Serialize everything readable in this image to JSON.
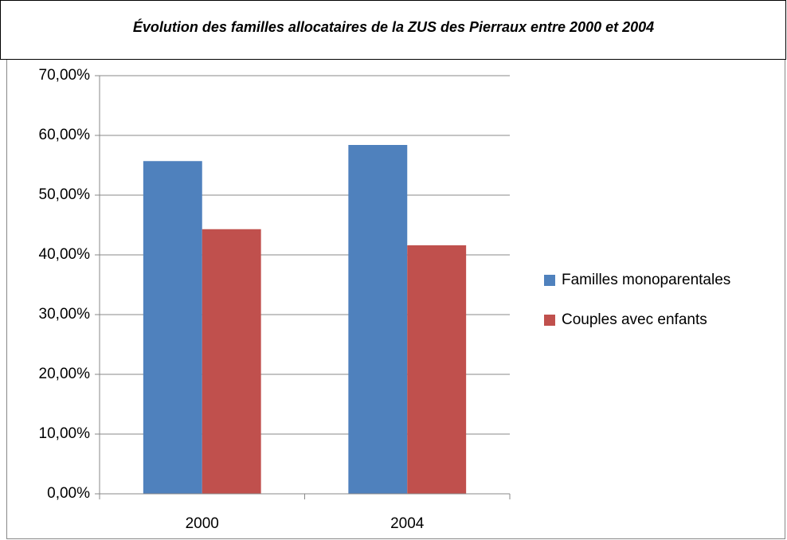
{
  "chart_data": {
    "type": "bar",
    "title": "Évolution des familles allocataires de la ZUS des Pierraux entre 2000 et 2004",
    "categories": [
      "2000",
      "2004"
    ],
    "series": [
      {
        "name": "Familles monoparentales",
        "color": "#4f81bd",
        "values": [
          55.7,
          58.4
        ]
      },
      {
        "name": "Couples avec enfants",
        "color": "#c0504d",
        "values": [
          44.3,
          41.6
        ]
      }
    ],
    "ylim": [
      0,
      70
    ],
    "yticks": [
      {
        "value": 0,
        "label": "0,00%"
      },
      {
        "value": 10,
        "label": "10,00%"
      },
      {
        "value": 20,
        "label": "20,00%"
      },
      {
        "value": 30,
        "label": "30,00%"
      },
      {
        "value": 40,
        "label": "40,00%"
      },
      {
        "value": 50,
        "label": "50,00%"
      },
      {
        "value": 60,
        "label": "60,00%"
      },
      {
        "value": 70,
        "label": "70,00%"
      }
    ],
    "grid": true,
    "legend": "right"
  }
}
